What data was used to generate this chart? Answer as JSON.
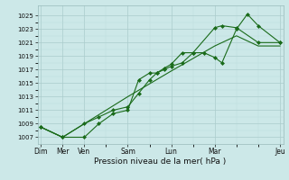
{
  "bg_color": "#cce8e8",
  "grid_major_color": "#aacccc",
  "grid_minor_color": "#bbdddd",
  "line_color": "#1a6b1a",
  "xlabel": "Pression niveau de la mer( hPa )",
  "ylim": [
    1006.0,
    1026.5
  ],
  "yticks": [
    1007,
    1009,
    1011,
    1013,
    1015,
    1017,
    1019,
    1021,
    1023,
    1025
  ],
  "xlim": [
    -0.15,
    11.15
  ],
  "xtick_labels_pos": [
    0,
    1,
    2,
    4,
    6,
    8,
    11
  ],
  "xtick_labels": [
    "Dim",
    "Mer",
    "Ven",
    "Sam",
    "Lun",
    "Mar",
    "Jeu"
  ],
  "series1_x": [
    0,
    1,
    2,
    2.67,
    3.33,
    4,
    4.5,
    5,
    5.33,
    5.67,
    6,
    6.5,
    7,
    7.5,
    8,
    8.33,
    9,
    9.5,
    10,
    11
  ],
  "series1_y": [
    1008.5,
    1007.0,
    1007.0,
    1009.0,
    1010.5,
    1011.0,
    1015.5,
    1016.5,
    1016.5,
    1017.0,
    1017.5,
    1018.0,
    1019.5,
    1019.5,
    1018.8,
    1018.0,
    1023.0,
    1025.2,
    1023.5,
    1021.0
  ],
  "series2_x": [
    0,
    1,
    2,
    2.67,
    3.33,
    4,
    4.5,
    5,
    5.33,
    5.67,
    6,
    6.5,
    7,
    8,
    8.33,
    9,
    10,
    11
  ],
  "series2_y": [
    1008.5,
    1007.0,
    1009.0,
    1010.0,
    1011.0,
    1011.5,
    1013.5,
    1015.5,
    1016.5,
    1017.2,
    1017.8,
    1019.5,
    1019.5,
    1023.2,
    1023.5,
    1023.2,
    1021.0,
    1021.0
  ],
  "series3_x": [
    0,
    1,
    2,
    4,
    6,
    8,
    9,
    10,
    11
  ],
  "series3_y": [
    1008.5,
    1007.0,
    1009.0,
    1013.0,
    1016.8,
    1020.5,
    1022.0,
    1020.5,
    1020.5
  ]
}
